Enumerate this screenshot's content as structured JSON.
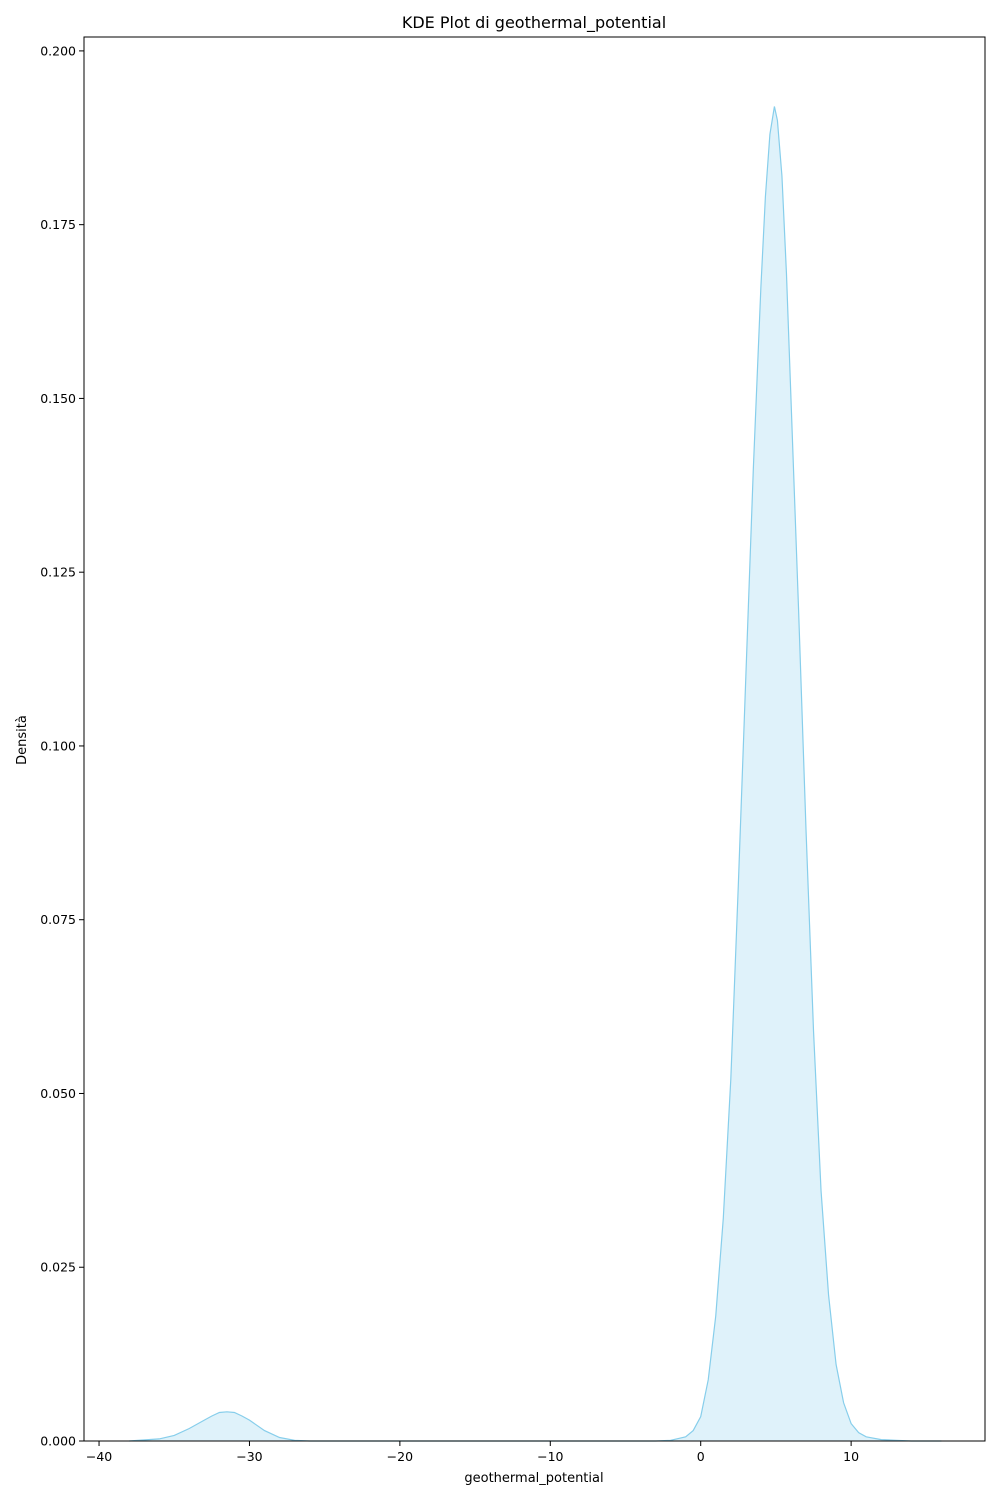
{
  "chart_data": {
    "type": "area",
    "title": "KDE Plot di geothermal_potential",
    "xlabel": "geothermal_potential",
    "ylabel": "Densità",
    "xlim": [
      -41,
      18.9
    ],
    "ylim": [
      0,
      0.202
    ],
    "xticks": [
      -40,
      -30,
      -20,
      -10,
      0,
      10
    ],
    "xtick_labels": [
      "−40",
      "−30",
      "−20",
      "−10",
      "0",
      "10"
    ],
    "yticks": [
      0,
      0.025,
      0.05,
      0.075,
      0.1,
      0.125,
      0.15,
      0.175,
      0.2
    ],
    "ytick_labels": [
      "0.000",
      "0.025",
      "0.050",
      "0.075",
      "0.100",
      "0.125",
      "0.150",
      "0.175",
      "0.200"
    ],
    "grid": false,
    "legend": "none",
    "colors": {
      "line": "#87ceeb",
      "fill": "#87ceeb",
      "fill_opacity": 0.27
    },
    "series": [
      {
        "x": [
          -38,
          -36,
          -35,
          -34,
          -33,
          -32.5,
          -32,
          -31.5,
          -31,
          -30.5,
          -30,
          -29,
          -28,
          -27,
          -26,
          -24,
          -20,
          -15,
          -10,
          -5,
          -3,
          -2,
          -1,
          -0.5,
          0,
          0.5,
          1,
          1.5,
          2,
          2.5,
          3,
          3.5,
          4,
          4.3,
          4.6,
          4.9,
          5.1,
          5.4,
          5.7,
          6,
          6.5,
          7,
          7.5,
          8,
          8.5,
          9,
          9.5,
          10,
          10.5,
          11,
          12,
          13,
          14,
          15,
          16
        ],
        "y": [
          0,
          0.0003,
          0.0008,
          0.0018,
          0.003,
          0.0036,
          0.0041,
          0.0042,
          0.0041,
          0.0036,
          0.003,
          0.0015,
          0.0005,
          0.0001,
          0,
          0,
          0,
          0,
          0,
          0,
          0,
          0.0001,
          0.0006,
          0.0015,
          0.0035,
          0.0088,
          0.018,
          0.032,
          0.052,
          0.08,
          0.11,
          0.14,
          0.166,
          0.179,
          0.188,
          0.192,
          0.19,
          0.182,
          0.168,
          0.15,
          0.12,
          0.088,
          0.059,
          0.036,
          0.021,
          0.011,
          0.0055,
          0.0025,
          0.0012,
          0.0006,
          0.0002,
          0.0001,
          0,
          0,
          0
        ]
      }
    ]
  }
}
